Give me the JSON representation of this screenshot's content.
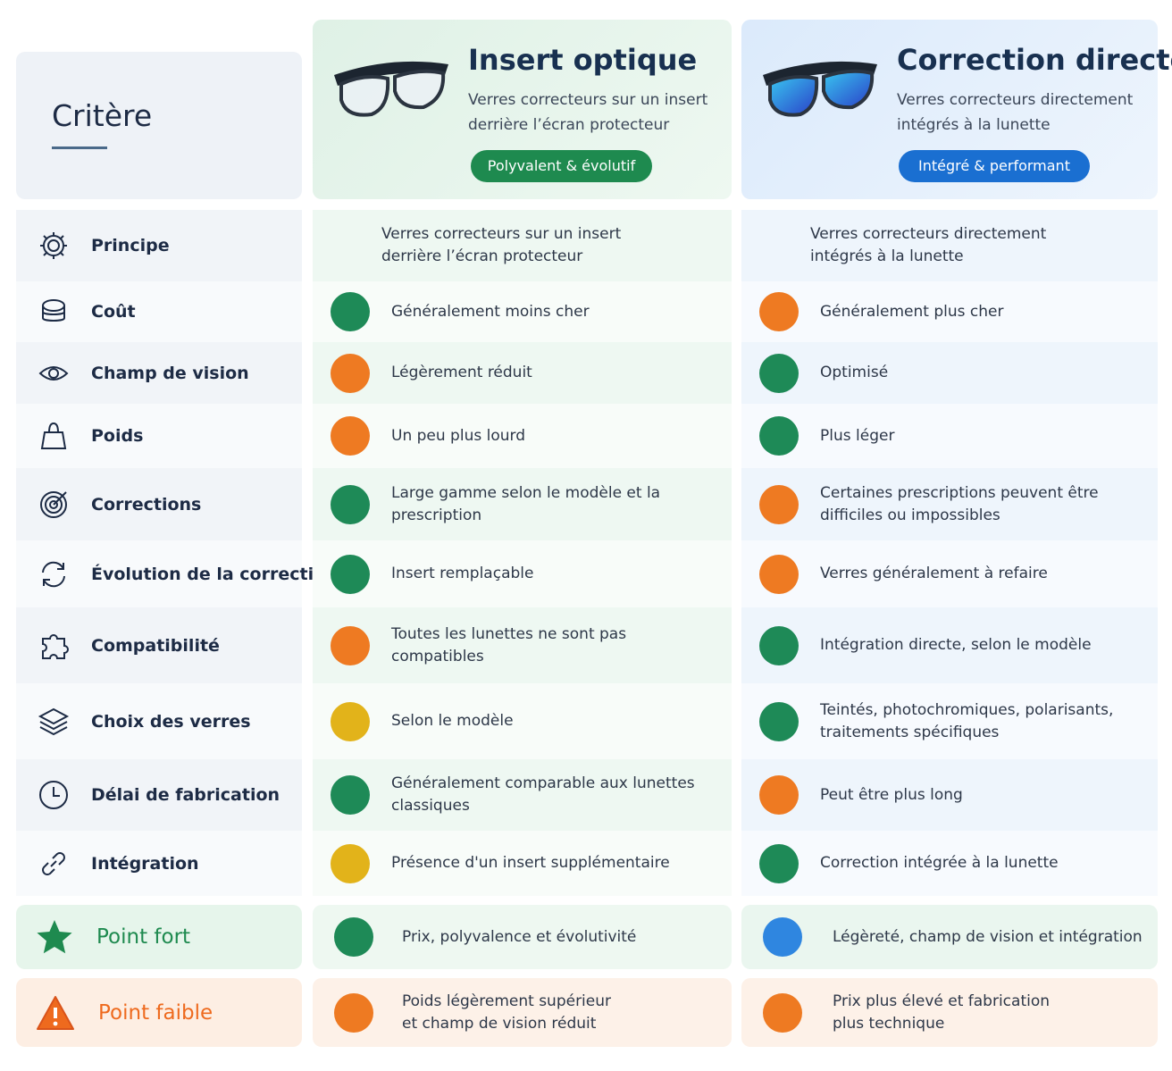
{
  "header": {
    "criterion": "Critère",
    "columns": [
      {
        "title": "Insert optique",
        "subtitle": "Verres correcteurs sur un insert derrière l’écran protecteur",
        "badge": "Polyvalent & évolutif",
        "color": "#1e8a4f"
      },
      {
        "title": "Correction directe",
        "subtitle": "Verres correcteurs directement intégrés à la lunette",
        "badge": "Intégré & performant",
        "color": "#1a6fd1"
      }
    ]
  },
  "rows": [
    {
      "label": "Principe",
      "cells": [
        {
          "text": "Verres correcteurs sur un insert derrière l’écran protecteur"
        },
        {
          "text": "Verres correcteurs directement intégrés à la lunette"
        }
      ]
    },
    {
      "label": "Coût",
      "cells": [
        {
          "text": "Généralement moins cher",
          "color": "#1e8a57"
        },
        {
          "text": "Généralement plus cher",
          "color": "#ee7a22"
        }
      ]
    },
    {
      "label": "Champ de vision",
      "cells": [
        {
          "text": "Légèrement réduit",
          "color": "#ee7a22"
        },
        {
          "text": "Optimisé",
          "color": "#1e8a57"
        }
      ]
    },
    {
      "label": "Poids",
      "cells": [
        {
          "text": "Un peu plus lourd",
          "color": "#ee7a22"
        },
        {
          "text": "Plus léger",
          "color": "#1e8a57"
        }
      ]
    },
    {
      "label": "Corrections",
      "cells": [
        {
          "text": "Large gamme selon le modèle et la prescription",
          "color": "#1e8a57"
        },
        {
          "text": "Certaines prescriptions peuvent être difficiles ou impossibles",
          "color": "#ee7a22"
        }
      ]
    },
    {
      "label": "Évolution de la correction",
      "cells": [
        {
          "text": "Insert remplaçable",
          "color": "#1e8a57"
        },
        {
          "text": "Verres généralement à refaire",
          "color": "#ee7a22"
        }
      ]
    },
    {
      "label": "Compatibilité",
      "cells": [
        {
          "text": "Toutes les lunettes ne sont pas compatibles",
          "color": "#ee7a22"
        },
        {
          "text": "Intégration directe, selon le modèle",
          "color": "#1e8a57"
        }
      ]
    },
    {
      "label": "Choix des verres",
      "cells": [
        {
          "text": "Selon le modèle",
          "color": "#e2b31a"
        },
        {
          "text": "Teintés, photochromiques, polarisants, traitements spécifiques",
          "color": "#1e8a57"
        }
      ]
    },
    {
      "label": "Délai de fabrication",
      "cells": [
        {
          "text": "Généralement comparable aux lunettes classiques",
          "color": "#1e8a57"
        },
        {
          "text": "Peut être plus long",
          "color": "#ee7a22"
        }
      ]
    },
    {
      "label": "Intégration",
      "cells": [
        {
          "text": "Présence d'un insert supplémentaire",
          "color": "#e2b31a"
        },
        {
          "text": "Correction intégrée à la lunette",
          "color": "#1e8a57"
        }
      ]
    }
  ],
  "summary": [
    {
      "label": "Point fort",
      "cells": [
        {
          "text": "Prix, polyvalence et évolutivité",
          "color": "#1e8a57"
        },
        {
          "text": "Légèreté, champ de vision et intégration",
          "color": "#2f86e0"
        }
      ]
    },
    {
      "label": "Point faible",
      "cells": [
        {
          "text": "Poids légèrement supérieur et champ de vision réduit",
          "color": "#ee7a22"
        },
        {
          "text": "Prix plus élevé et fabrication plus technique",
          "color": "#ee7a22"
        }
      ]
    }
  ]
}
